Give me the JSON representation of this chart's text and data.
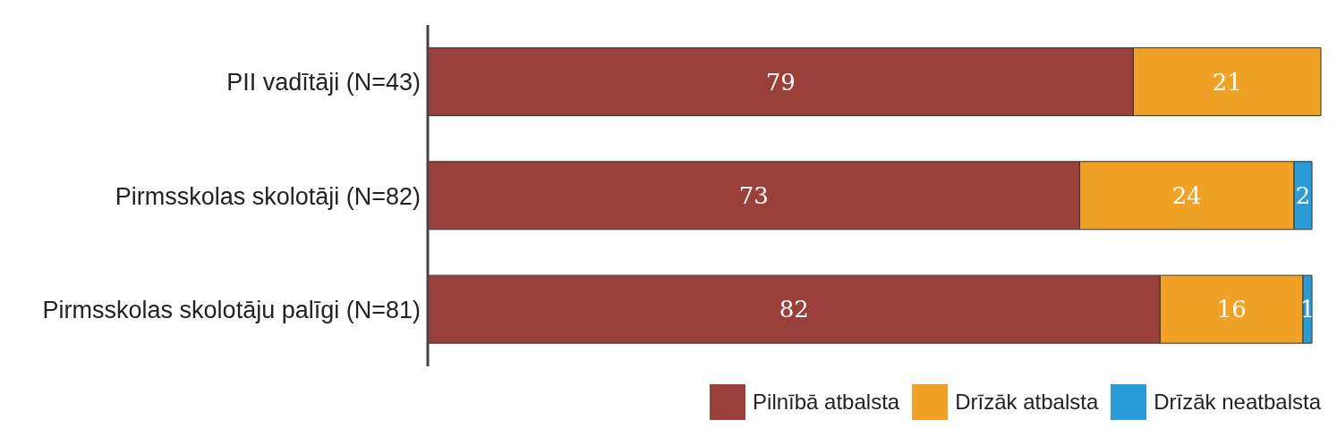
{
  "chart_data": {
    "type": "bar",
    "orientation": "horizontal",
    "stacked": true,
    "categories": [
      "PII vadītāji (N=43)",
      "Pirmsskolas skolotāji (N=82)",
      "Pirmsskolas skolotāju palīgi (N=81)"
    ],
    "series": [
      {
        "name": "Pilnībā atbalsta",
        "color": "#9a403b",
        "values": [
          79,
          73,
          82
        ]
      },
      {
        "name": "Drīzāk atbalsta",
        "color": "#f0a226",
        "values": [
          21,
          24,
          16
        ]
      },
      {
        "name": "Drīzāk neatbalsta",
        "color": "#2a9bd6",
        "values": [
          null,
          2,
          1
        ]
      }
    ],
    "data_labels": true,
    "legend": "bottom right",
    "tick_labels": "y"
  }
}
